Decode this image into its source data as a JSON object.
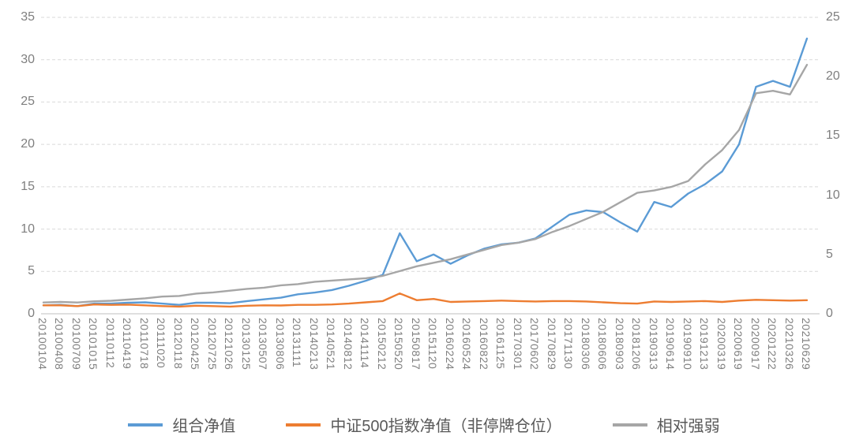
{
  "chart_data": {
    "type": "line",
    "title": "",
    "grid": "horizontal-dashed",
    "legend_position": "bottom",
    "categories": [
      "20100104",
      "20100408",
      "20100709",
      "20101015",
      "20110112",
      "20110419",
      "20110718",
      "20111020",
      "20120118",
      "20120425",
      "20120725",
      "20121026",
      "20130125",
      "20130507",
      "20130806",
      "20131111",
      "20140213",
      "20140521",
      "20140812",
      "20141114",
      "20150212",
      "20150520",
      "20150817",
      "20151120",
      "20160224",
      "20160524",
      "20160822",
      "20161125",
      "20170301",
      "20170602",
      "20170829",
      "20171130",
      "20180306",
      "20180606",
      "20180903",
      "20181206",
      "20190313",
      "20190614",
      "20190910",
      "20191213",
      "20200319",
      "20200619",
      "20200917",
      "20201222",
      "20210326",
      "20210629"
    ],
    "left_axis": {
      "min": 0,
      "max": 35,
      "ticks": [
        0,
        5,
        10,
        15,
        20,
        25,
        30,
        35
      ]
    },
    "right_axis": {
      "min": 0,
      "max": 25,
      "ticks": [
        0,
        5,
        10,
        15,
        20,
        25
      ]
    },
    "series": [
      {
        "name": "组合净值",
        "axis": "left",
        "color": "#5B9BD5",
        "values": [
          1.0,
          1.05,
          0.9,
          1.2,
          1.2,
          1.3,
          1.35,
          1.2,
          1.05,
          1.3,
          1.3,
          1.25,
          1.5,
          1.7,
          1.9,
          2.3,
          2.5,
          2.8,
          3.3,
          3.9,
          4.6,
          9.5,
          6.2,
          7.0,
          5.9,
          6.9,
          7.7,
          8.2,
          8.4,
          8.9,
          10.3,
          11.7,
          12.2,
          12.0,
          10.8,
          9.7,
          13.2,
          12.6,
          14.2,
          15.3,
          16.8,
          20.0,
          26.8,
          27.5,
          26.8,
          32.5
        ]
      },
      {
        "name": "中证500指数净值（非停牌仓位）",
        "axis": "left",
        "color": "#ED7D31",
        "values": [
          1.0,
          1.0,
          0.9,
          1.1,
          1.05,
          1.08,
          1.0,
          0.9,
          0.85,
          0.95,
          0.9,
          0.85,
          0.95,
          1.0,
          0.98,
          1.05,
          1.05,
          1.1,
          1.2,
          1.35,
          1.5,
          2.4,
          1.6,
          1.75,
          1.4,
          1.45,
          1.5,
          1.55,
          1.5,
          1.45,
          1.5,
          1.5,
          1.45,
          1.35,
          1.25,
          1.2,
          1.45,
          1.4,
          1.45,
          1.5,
          1.4,
          1.55,
          1.65,
          1.6,
          1.55,
          1.6
        ]
      },
      {
        "name": "相对强弱",
        "axis": "right",
        "color": "#A6A6A6",
        "values": [
          0.95,
          1.0,
          0.95,
          1.05,
          1.1,
          1.2,
          1.3,
          1.45,
          1.5,
          1.7,
          1.8,
          1.95,
          2.1,
          2.2,
          2.4,
          2.5,
          2.7,
          2.8,
          2.9,
          3.0,
          3.2,
          3.6,
          4.0,
          4.3,
          4.6,
          5.0,
          5.4,
          5.8,
          6.0,
          6.3,
          6.9,
          7.4,
          8.0,
          8.6,
          9.4,
          10.2,
          10.4,
          10.7,
          11.2,
          12.6,
          13.8,
          15.5,
          18.6,
          18.8,
          18.5,
          21.0
        ]
      }
    ],
    "colors": {
      "gridline": "#d9d9d9",
      "axis_line": "#bfbfbf",
      "tick_text": "#7f7f7f",
      "legend_text": "#595959"
    }
  }
}
